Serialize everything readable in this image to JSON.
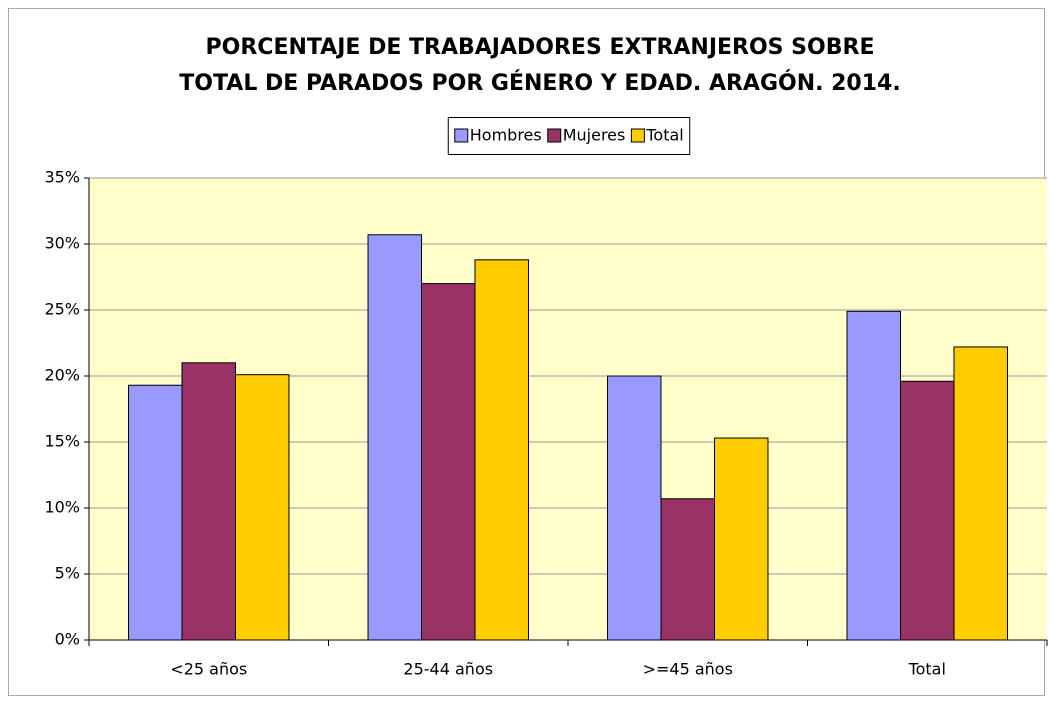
{
  "chart_data": {
    "type": "bar",
    "title": [
      "PORCENTAJE DE TRABAJADORES EXTRANJEROS SOBRE",
      "TOTAL DE PARADOS POR GÉNERO Y EDAD. ARAGÓN. 2014."
    ],
    "categories": [
      "<25 años",
      "25-44 años",
      ">=45 años",
      "Total"
    ],
    "series": [
      {
        "name": "Hombres",
        "color": "#9999ff",
        "values": [
          19.3,
          30.7,
          20.0,
          24.9
        ]
      },
      {
        "name": "Mujeres",
        "color": "#993366",
        "values": [
          21.0,
          27.0,
          10.7,
          19.6
        ]
      },
      {
        "name": "Total",
        "color": "#ffcc00",
        "values": [
          20.1,
          28.8,
          15.3,
          22.2
        ]
      }
    ],
    "ylim": [
      0,
      35
    ],
    "yticks": [
      {
        "value": 0,
        "label": "0%"
      },
      {
        "value": 5,
        "label": "5%"
      },
      {
        "value": 10,
        "label": "10%"
      },
      {
        "value": 15,
        "label": "15%"
      },
      {
        "value": 20,
        "label": "20%"
      },
      {
        "value": 25,
        "label": "25%"
      },
      {
        "value": 30,
        "label": "30%"
      },
      {
        "value": 35,
        "label": "35%"
      }
    ],
    "grid": true,
    "legend": "top",
    "plot_background": "#ffffcc"
  }
}
